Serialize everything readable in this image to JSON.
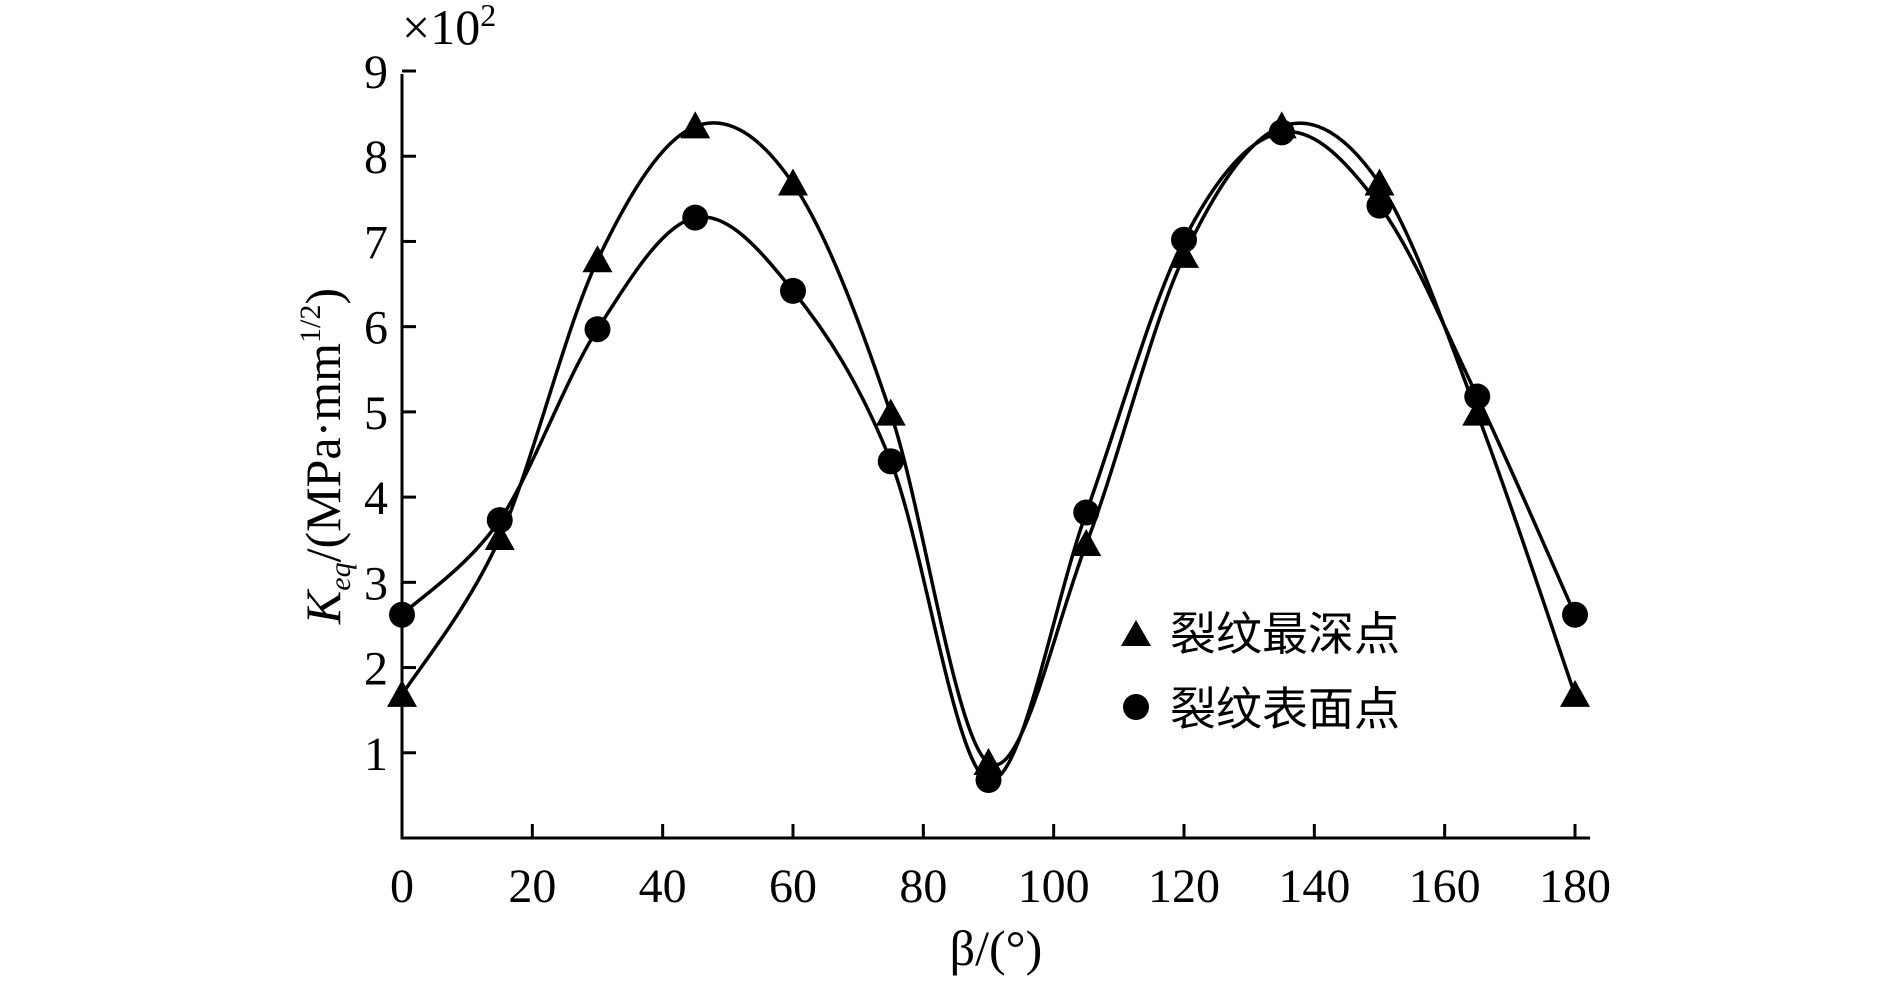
{
  "chart_data": {
    "type": "line",
    "x": [
      0,
      15,
      30,
      45,
      60,
      75,
      90,
      105,
      120,
      135,
      150,
      165,
      180
    ],
    "series": [
      {
        "name": "裂纹最深点",
        "marker": "triangle",
        "values": [
          1.68,
          3.52,
          6.78,
          8.35,
          7.68,
          4.98,
          0.88,
          3.45,
          6.83,
          8.35,
          7.68,
          4.98,
          1.68
        ]
      },
      {
        "name": "裂纹表面点",
        "marker": "circle",
        "values": [
          2.62,
          3.73,
          5.97,
          7.28,
          6.42,
          4.42,
          0.68,
          3.82,
          7.02,
          8.28,
          7.42,
          5.18,
          2.62
        ]
      }
    ],
    "xlim": [
      0,
      180
    ],
    "ylim": [
      0,
      9
    ],
    "xticks": [
      "0",
      "20",
      "40",
      "60",
      "80",
      "100",
      "120",
      "140",
      "160",
      "180"
    ],
    "xtick_values": [
      0,
      20,
      40,
      60,
      80,
      100,
      120,
      140,
      160,
      180
    ],
    "yticks": [
      "1",
      "2",
      "3",
      "4",
      "5",
      "6",
      "7",
      "8",
      "9"
    ],
    "ytick_values": [
      1,
      2,
      3,
      4,
      5,
      6,
      7,
      8,
      9
    ],
    "xlabel": "β/(°)",
    "ylabel": "K_eq/(MPa·mm^1/2)",
    "ylabel_main": "K",
    "ylabel_sub": "eq",
    "ylabel_rest": "/(MPa·mm",
    "ylabel_sup": "1/2",
    "ylabel_close": ")",
    "multiplier": "×10²",
    "multiplier_base": "×10",
    "multiplier_exp": "2",
    "legend_position": "lower-right",
    "grid": false
  }
}
